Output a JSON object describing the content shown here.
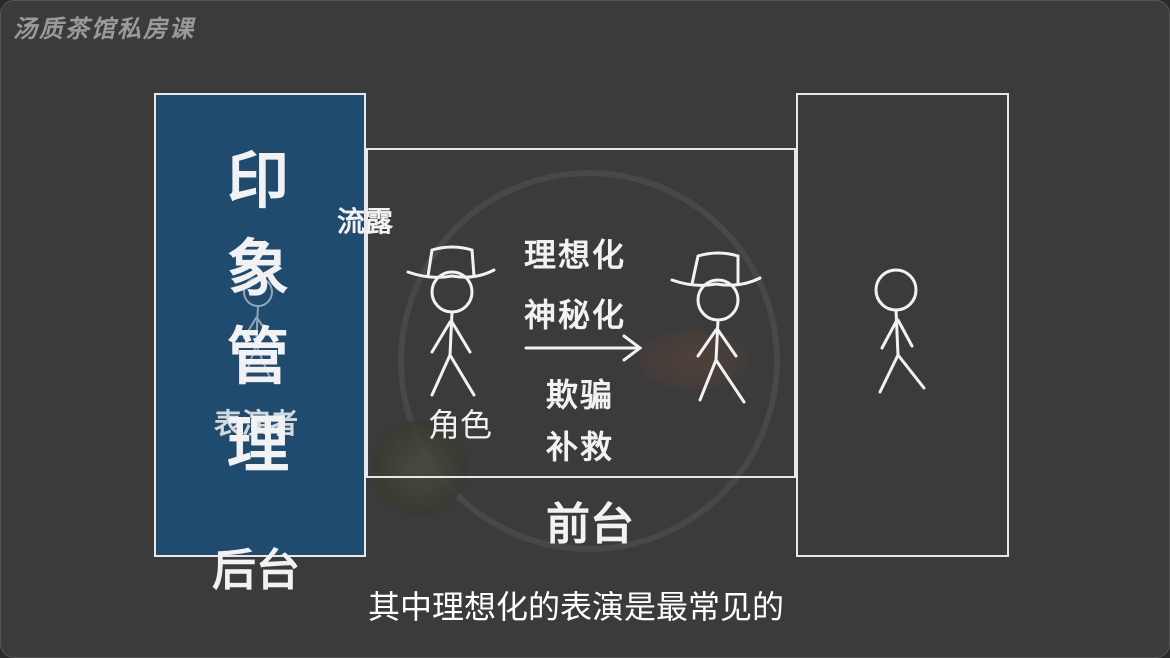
{
  "watermark": "汤质茶馆私房课",
  "left_panel": {
    "title_chars": [
      "印",
      "象",
      "管",
      "理"
    ],
    "actor_label": "表演者",
    "backstage_label": "后台"
  },
  "labels": {
    "leak": "流露",
    "role": "角色",
    "frontstage": "前台"
  },
  "transform": {
    "line1": "理想化",
    "line2": "神秘化",
    "line3": "欺骗",
    "line4": "补救"
  },
  "subtitle": "其中理想化的表演是最常见的",
  "colors": {
    "background": "#3b3b3b",
    "panel_blue": "#1f4b6e",
    "line": "#e8e8e8"
  }
}
